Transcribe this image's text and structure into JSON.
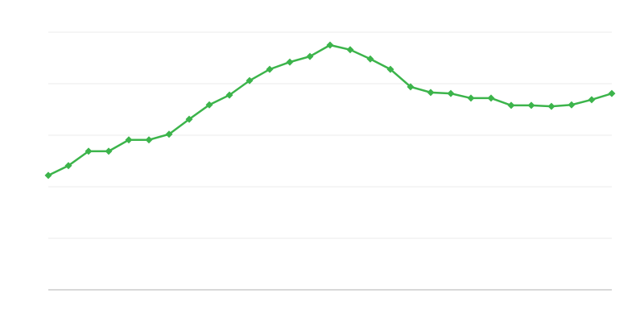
{
  "chart_data": {
    "type": "line",
    "title": "",
    "xlabel": "",
    "ylabel": "",
    "grid": true,
    "ylim": [
      0,
      5
    ],
    "gridline_values": [
      0,
      1,
      2,
      3,
      4,
      5
    ],
    "line_color": "#3cb44b",
    "gridline_color": "#ebebeb",
    "axis_color": "#b0b0b0",
    "marker": "diamond",
    "x": [
      1,
      2,
      3,
      4,
      5,
      6,
      7,
      8,
      9,
      10,
      11,
      12,
      13,
      14,
      15,
      16,
      17,
      18,
      19,
      20,
      21,
      22,
      23,
      24,
      25,
      26,
      27,
      28,
      29
    ],
    "series": [
      {
        "values": [
          2.22,
          2.41,
          2.69,
          2.69,
          2.91,
          2.91,
          3.02,
          3.31,
          3.59,
          3.78,
          4.06,
          4.28,
          4.42,
          4.53,
          4.75,
          4.66,
          4.48,
          4.28,
          3.94,
          3.83,
          3.81,
          3.72,
          3.72,
          3.58,
          3.58,
          3.56,
          3.59,
          3.69,
          3.81
        ]
      }
    ]
  }
}
